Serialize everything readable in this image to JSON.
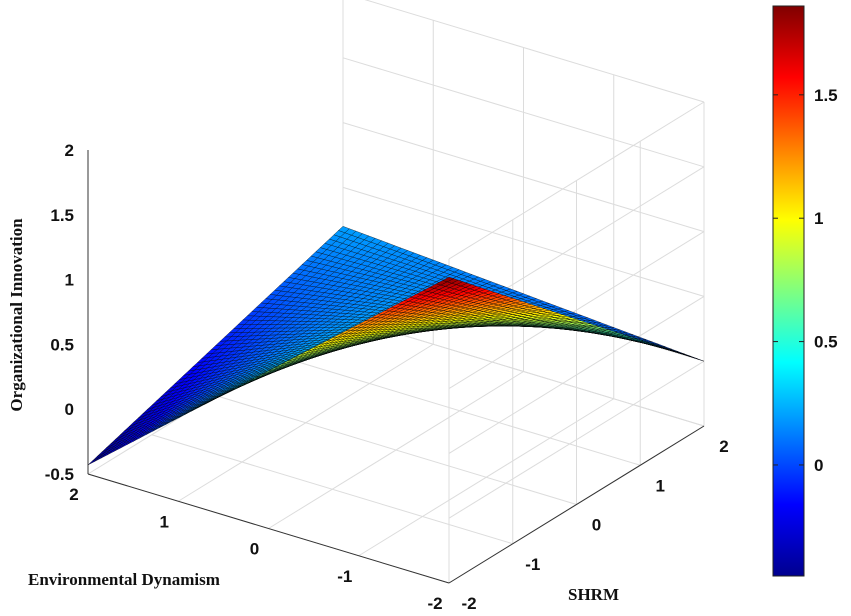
{
  "chart_data": {
    "type": "surface3d",
    "xlabel": "Environmental Dynamism",
    "ylabel": "SHRM",
    "zlabel": "Organizational Innovation",
    "x_range": [
      -2,
      2
    ],
    "y_range": [
      -2,
      2
    ],
    "z_range": [
      -0.5,
      2
    ],
    "x_ticks": [
      "-2",
      "-1",
      "0",
      "1",
      "2"
    ],
    "y_ticks": [
      "-2",
      "-1",
      "0",
      "1",
      "2"
    ],
    "z_ticks": [
      "-0.5",
      "0",
      "0.5",
      "1",
      "1.5",
      "2"
    ],
    "colorbar_ticks": [
      "0",
      "0.5",
      "1",
      "1.5"
    ],
    "colorbar_range": [
      -0.45,
      1.86
    ],
    "colormap": "jet",
    "grid": true,
    "surface_corners": [
      {
        "x": 2,
        "y": -2,
        "z": -0.43
      },
      {
        "x": -2,
        "y": -2,
        "z": 1.86
      },
      {
        "x": -2,
        "y": 2,
        "z": 0.0
      },
      {
        "x": 2,
        "y": 2,
        "z": 0.2
      }
    ]
  }
}
